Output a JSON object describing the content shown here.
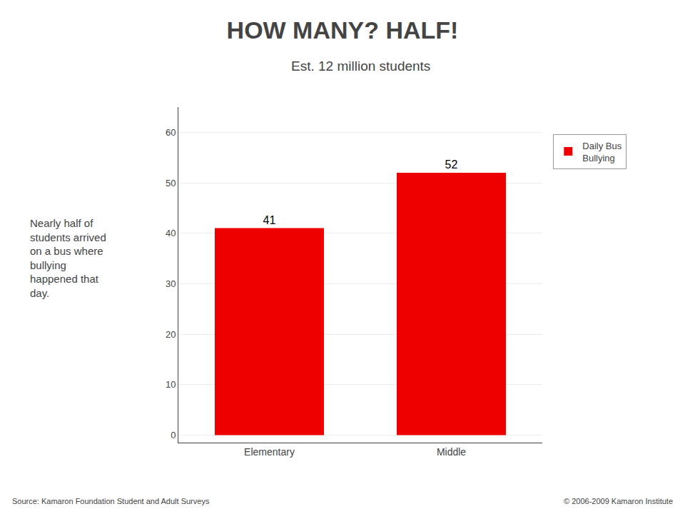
{
  "chart_data": {
    "type": "bar",
    "title": "HOW MANY? HALF!",
    "subtitle": "Est. 12 million students",
    "categories": [
      "Elementary",
      "Middle"
    ],
    "series": [
      {
        "name": "Daily Bus\nBullying",
        "color": "#EE0000",
        "values": [
          41,
          52
        ]
      }
    ],
    "ylim": [
      -1.5,
      65
    ],
    "yticks": [
      0,
      10,
      20,
      30,
      40,
      50,
      60
    ],
    "grid": true,
    "legend": "upper right",
    "data_labels": true,
    "annotations": [
      "Nearly half of\nstudents arrived\non a bus where\nbullying\nhappened that\nday.",
      "Source: Kamaron Foundation Student and Adult Surveys",
      "© 2006-2009 Kamaron Institute"
    ]
  }
}
